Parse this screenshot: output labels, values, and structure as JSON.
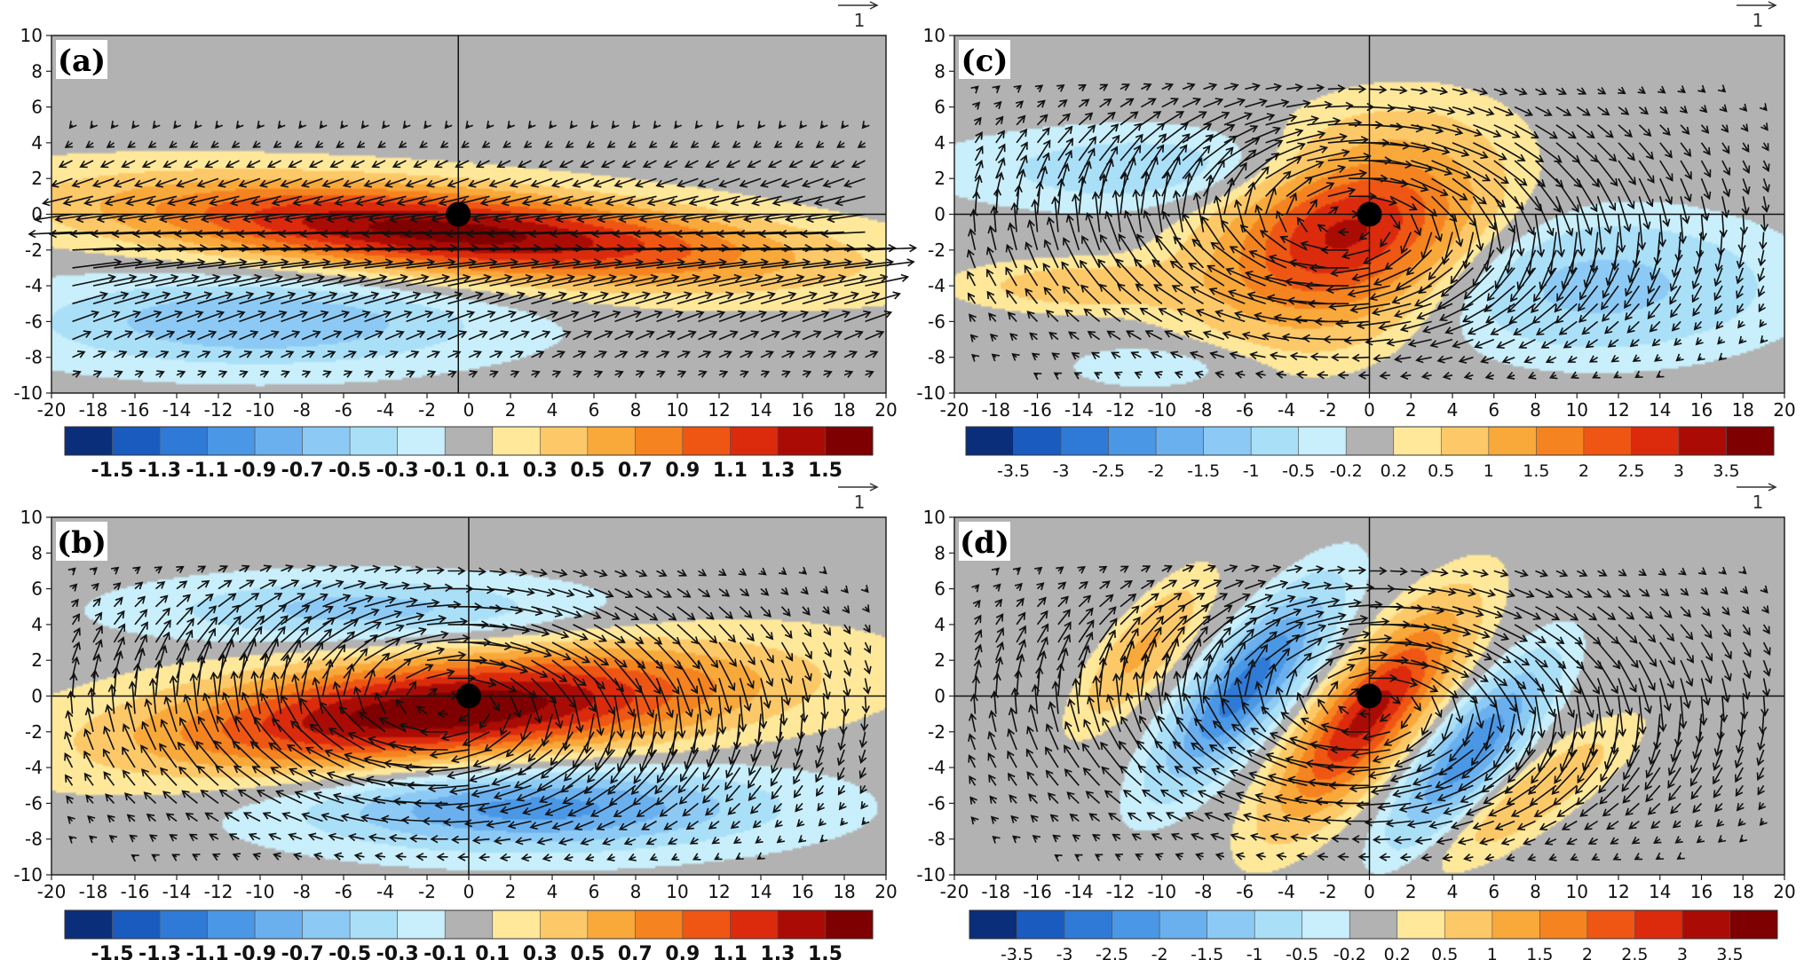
{
  "chart_data": [
    {
      "panel": "(a)",
      "type": "heatmap",
      "overlay": "vector",
      "title": "",
      "xlabel": "",
      "ylabel": "",
      "xlim": [
        -20,
        20
      ],
      "ylim": [
        -10,
        10
      ],
      "xticks": [
        "-20",
        "-18",
        "-16",
        "-14",
        "-12",
        "-10",
        "-8",
        "-6",
        "-4",
        "-2",
        "0",
        "2",
        "4",
        "6",
        "8",
        "10",
        "12",
        "14",
        "16",
        "18",
        "20"
      ],
      "yticks": [
        "10",
        "8",
        "6",
        "4",
        "2",
        "0",
        "-2",
        "-4",
        "-6",
        "-8",
        "-10"
      ],
      "reference_vector": "1",
      "center_marker": [
        -0.5,
        0
      ],
      "colorbar": {
        "levels": [
          "-1.5",
          "-1.3",
          "-1.1",
          "-0.9",
          "-0.7",
          "-0.5",
          "-0.3",
          "-0.1",
          "0.1",
          "0.3",
          "0.5",
          "0.7",
          "0.9",
          "1.1",
          "1.3",
          "1.5"
        ],
        "max_value": 1.6,
        "colors": [
          "#0a2e7a",
          "#1a5bc0",
          "#2f7ad6",
          "#4a97e6",
          "#6ab0ef",
          "#8ccaf5",
          "#aadff8",
          "#c8effb",
          "#b2b2b2",
          "#ffe89a",
          "#fdc968",
          "#f9a83a",
          "#f5831f",
          "#ef5614",
          "#dc2a0d",
          "#aa0c05",
          "#7e0000"
        ]
      },
      "features": [
        {
          "kind": "anomaly",
          "sign": "positive",
          "center": [
            -1,
            -1
          ],
          "axes": [
            17,
            2.6
          ],
          "tilt_deg": -5,
          "peak": 1.6
        },
        {
          "kind": "anomaly",
          "sign": "negative",
          "center": [
            -10,
            -6
          ],
          "axes": [
            12,
            2.8
          ],
          "tilt_deg": 0,
          "peak": -0.7
        },
        {
          "kind": "flow",
          "pattern": "zonal-jet",
          "center": [
            -0.5,
            -1.5
          ]
        }
      ]
    },
    {
      "panel": "(b)",
      "type": "heatmap",
      "overlay": "vector",
      "title": "",
      "xlabel": "",
      "ylabel": "",
      "xlim": [
        -20,
        20
      ],
      "ylim": [
        -10,
        10
      ],
      "xticks": [
        "-20",
        "-18",
        "-16",
        "-14",
        "-12",
        "-10",
        "-8",
        "-6",
        "-4",
        "-2",
        "0",
        "2",
        "4",
        "6",
        "8",
        "10",
        "12",
        "14",
        "16",
        "18",
        "20"
      ],
      "yticks": [
        "10",
        "8",
        "6",
        "4",
        "2",
        "0",
        "-2",
        "-4",
        "-6",
        "-8",
        "-10"
      ],
      "reference_vector": "1",
      "center_marker": [
        0,
        0
      ],
      "colorbar": {
        "levels": [
          "-1.5",
          "-1.3",
          "-1.1",
          "-0.9",
          "-0.7",
          "-0.5",
          "-0.3",
          "-0.1",
          "0.1",
          "0.3",
          "0.5",
          "0.7",
          "0.9",
          "1.1",
          "1.3",
          "1.5"
        ],
        "max_value": 1.6,
        "colors": [
          "#0a2e7a",
          "#1a5bc0",
          "#2f7ad6",
          "#4a97e6",
          "#6ab0ef",
          "#8ccaf5",
          "#aadff8",
          "#c8effb",
          "#b2b2b2",
          "#ffe89a",
          "#fdc968",
          "#f9a83a",
          "#f5831f",
          "#ef5614",
          "#dc2a0d",
          "#aa0c05",
          "#7e0000"
        ]
      },
      "features": [
        {
          "kind": "anomaly",
          "sign": "positive",
          "center": [
            -1,
            -0.8
          ],
          "axes": [
            15,
            3.2
          ],
          "tilt_deg": 6,
          "peak": 1.7
        },
        {
          "kind": "anomaly",
          "sign": "negative",
          "center": [
            3,
            -6.2
          ],
          "axes": [
            12,
            2.6
          ],
          "tilt_deg": 0,
          "peak": -1.0
        },
        {
          "kind": "anomaly",
          "sign": "negative",
          "center": [
            -5,
            4.8
          ],
          "axes": [
            11,
            2.0
          ],
          "tilt_deg": 0,
          "peak": -0.6
        },
        {
          "kind": "flow",
          "pattern": "vortex",
          "center": [
            -1,
            -0.5
          ]
        }
      ]
    },
    {
      "panel": "(c)",
      "type": "heatmap",
      "overlay": "vector",
      "title": "",
      "xlabel": "",
      "ylabel": "",
      "xlim": [
        -20,
        20
      ],
      "ylim": [
        -10,
        10
      ],
      "xticks": [
        "-20",
        "-18",
        "-16",
        "-14",
        "-12",
        "-10",
        "-8",
        "-6",
        "-4",
        "-2",
        "0",
        "2",
        "4",
        "6",
        "8",
        "10",
        "12",
        "14",
        "16",
        "18",
        "20"
      ],
      "yticks": [
        "10",
        "8",
        "6",
        "4",
        "2",
        "0",
        "-2",
        "-4",
        "-6",
        "-8",
        "-10"
      ],
      "reference_vector": "1",
      "center_marker": [
        0,
        0
      ],
      "colorbar": {
        "levels": [
          "-3.5",
          "-3",
          "-2.5",
          "-2",
          "-1.5",
          "-1",
          "-0.5",
          "-0.2",
          "0.2",
          "0.5",
          "1",
          "1.5",
          "2",
          "2.5",
          "3",
          "3.5"
        ],
        "max_value": 3.8,
        "colors": [
          "#0a2e7a",
          "#1a5bc0",
          "#2f7ad6",
          "#4a97e6",
          "#6ab0ef",
          "#8ccaf5",
          "#aadff8",
          "#c8effb",
          "#b2b2b2",
          "#ffe89a",
          "#fdc968",
          "#f9a83a",
          "#f5831f",
          "#ef5614",
          "#dc2a0d",
          "#aa0c05",
          "#7e0000"
        ]
      },
      "features": [
        {
          "kind": "anomaly",
          "sign": "positive",
          "center": [
            -1,
            -1
          ],
          "axes": [
            7,
            5
          ],
          "tilt_deg": 30,
          "peak": 3.2
        },
        {
          "kind": "anomaly",
          "sign": "positive",
          "center": [
            -14,
            -4
          ],
          "axes": [
            6,
            1.5
          ],
          "tilt_deg": 0,
          "peak": 0.8
        },
        {
          "kind": "anomaly",
          "sign": "negative",
          "center": [
            -10,
            2.5
          ],
          "axes": [
            11,
            2.5
          ],
          "tilt_deg": 0,
          "peak": -0.8
        },
        {
          "kind": "anomaly",
          "sign": "negative",
          "center": [
            11,
            -4
          ],
          "axes": [
            9,
            4
          ],
          "tilt_deg": 0,
          "peak": -1.2
        },
        {
          "kind": "anomaly",
          "sign": "negative",
          "center": [
            -10,
            -8.5
          ],
          "axes": [
            5,
            1.5
          ],
          "tilt_deg": 0,
          "peak": -0.5
        },
        {
          "kind": "flow",
          "pattern": "vortex",
          "center": [
            -1,
            -0.5
          ]
        }
      ]
    },
    {
      "panel": "(d)",
      "type": "heatmap",
      "overlay": "vector",
      "title": "",
      "xlabel": "",
      "ylabel": "",
      "xlim": [
        -20,
        20
      ],
      "ylim": [
        -10,
        10
      ],
      "xticks": [
        "-20",
        "-18",
        "-16",
        "-14",
        "-12",
        "-10",
        "-8",
        "-6",
        "-4",
        "-2",
        "0",
        "2",
        "4",
        "6",
        "8",
        "10",
        "12",
        "14",
        "16",
        "18",
        "20"
      ],
      "yticks": [
        "10",
        "8",
        "6",
        "4",
        "2",
        "0",
        "-2",
        "-4",
        "-6",
        "-8",
        "-10"
      ],
      "reference_vector": "1",
      "center_marker": [
        0,
        0
      ],
      "colorbar": {
        "levels": [
          "-3.5",
          "-3",
          "-2.5",
          "-2",
          "-1.5",
          "-1",
          "-0.5",
          "-0.2",
          "0.2",
          "0.5",
          "1",
          "1.5",
          "2",
          "2.5",
          "3",
          "3.5"
        ],
        "max_value": 3.8,
        "colors": [
          "#0a2e7a",
          "#1a5bc0",
          "#2f7ad6",
          "#4a97e6",
          "#6ab0ef",
          "#8ccaf5",
          "#aadff8",
          "#c8effb",
          "#b2b2b2",
          "#ffe89a",
          "#fdc968",
          "#f9a83a",
          "#f5831f",
          "#ef5614",
          "#dc2a0d",
          "#aa0c05",
          "#7e0000"
        ]
      },
      "features": [
        {
          "kind": "anomaly",
          "sign": "positive",
          "center": [
            0,
            -1
          ],
          "axes": [
            7,
            2.2
          ],
          "tilt_deg": 55,
          "peak": 3.2
        },
        {
          "kind": "anomaly",
          "sign": "negative",
          "center": [
            -6,
            0.5
          ],
          "axes": [
            6.5,
            2
          ],
          "tilt_deg": 55,
          "peak": -2.8
        },
        {
          "kind": "anomaly",
          "sign": "negative",
          "center": [
            5,
            -3
          ],
          "axes": [
            6,
            1.8
          ],
          "tilt_deg": 55,
          "peak": -2.4
        },
        {
          "kind": "anomaly",
          "sign": "positive",
          "center": [
            -11,
            2.5
          ],
          "axes": [
            5,
            1.6
          ],
          "tilt_deg": 55,
          "peak": 1.1
        },
        {
          "kind": "anomaly",
          "sign": "positive",
          "center": [
            8,
            -5.5
          ],
          "axes": [
            6,
            1.7
          ],
          "tilt_deg": 40,
          "peak": 0.9
        },
        {
          "kind": "flow",
          "pattern": "vortex",
          "center": [
            0,
            -0.5
          ]
        }
      ]
    }
  ]
}
